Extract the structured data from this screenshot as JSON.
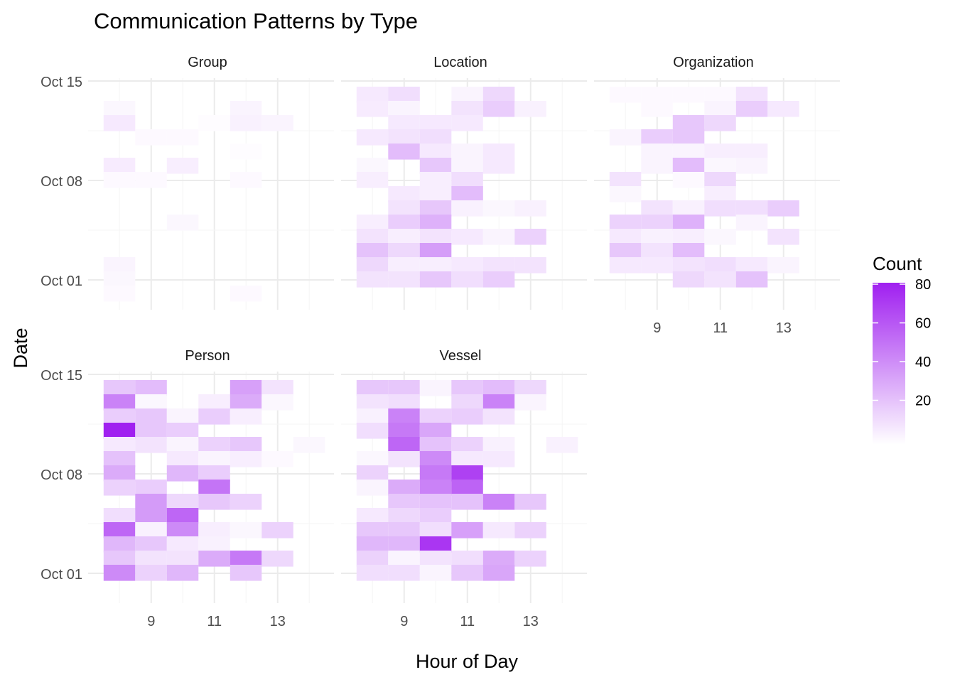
{
  "chart_data": {
    "type": "heatmap",
    "title": "Communication Patterns by Type",
    "xlabel": "Hour of Day",
    "ylabel": "Date",
    "x_range": [
      7.5,
      14.5
    ],
    "y_range": [
      "Sep 30",
      "Oct 16"
    ],
    "x_ticks": [
      9,
      11,
      13
    ],
    "y_ticks": [
      {
        "day": 1,
        "label": "Oct 01"
      },
      {
        "day": 8,
        "label": "Oct 08"
      },
      {
        "day": 15,
        "label": "Oct 15"
      }
    ],
    "legend": {
      "title": "Count",
      "min": 0,
      "max": 80,
      "ticks": [
        20,
        40,
        60,
        80
      ],
      "low_color": "#ffffff",
      "high_color": "#a020f0",
      "position": "right"
    },
    "grid": true,
    "panels": [
      {
        "name": "Group",
        "rows": [
          {
            "date": "Oct 14",
            "hour8": 3,
            "hour12": 4
          },
          {
            "date": "Oct 13",
            "hour8": 8,
            "hour11": 1,
            "hour12": 5,
            "hour13": 4
          },
          {
            "date": "Oct 12",
            "hour9": 2,
            "hour10": 2
          },
          {
            "date": "Oct 11",
            "hour12": 1
          },
          {
            "date": "Oct 10",
            "hour8": 7,
            "hour10": 6
          },
          {
            "date": "Oct 09",
            "hour8": 2,
            "hour9": 2,
            "hour12": 2
          },
          {
            "date": "Oct 06",
            "hour10": 3
          },
          {
            "date": "Oct 03",
            "hour8": 4
          },
          {
            "date": "Oct 02",
            "hour8": 3
          },
          {
            "date": "Oct 01",
            "hour8": 2,
            "hour12": 2
          }
        ]
      },
      {
        "name": "Location",
        "rows": [
          {
            "date": "Oct 15",
            "hour8": 8,
            "hour9": 12,
            "hour11": 4,
            "hour12": 14
          },
          {
            "date": "Oct 14",
            "hour8": 7,
            "hour9": 4,
            "hour11": 10,
            "hour12": 18,
            "hour13": 5
          },
          {
            "date": "Oct 13",
            "hour9": 8,
            "hour10": 8,
            "hour11": 8
          },
          {
            "date": "Oct 12",
            "hour8": 8,
            "hour9": 10,
            "hour10": 12
          },
          {
            "date": "Oct 11",
            "hour9": 24,
            "hour10": 8,
            "hour11": 4,
            "hour12": 8
          },
          {
            "date": "Oct 10",
            "hour8": 3,
            "hour10": 20,
            "hour11": 4,
            "hour12": 8
          },
          {
            "date": "Oct 09",
            "hour8": 6,
            "hour10": 6,
            "hour11": 12
          },
          {
            "date": "Oct 08",
            "hour9": 8,
            "hour10": 6,
            "hour11": 24
          },
          {
            "date": "Oct 07",
            "hour9": 10,
            "hour10": 20,
            "hour11": 5,
            "hour12": 3,
            "hour13": 5
          },
          {
            "date": "Oct 06",
            "hour8": 6,
            "hour9": 18,
            "hour10": 28
          },
          {
            "date": "Oct 05",
            "hour8": 10,
            "hour9": 6,
            "hour10": 10,
            "hour11": 8,
            "hour12": 4,
            "hour13": 16
          },
          {
            "date": "Oct 04",
            "hour8": 22,
            "hour9": 14,
            "hour10": 35
          },
          {
            "date": "Oct 03",
            "hour8": 14,
            "hour9": 6,
            "hour10": 6,
            "hour11": 8,
            "hour12": 10,
            "hour13": 10
          },
          {
            "date": "Oct 02",
            "hour8": 10,
            "hour9": 10,
            "hour10": 20,
            "hour11": 12,
            "hour12": 18
          }
        ]
      },
      {
        "name": "Organization",
        "rows": [
          {
            "date": "Oct 15",
            "hour8": 2,
            "hour9": 2,
            "hour10": 2,
            "hour11": 2,
            "hour12": 10
          },
          {
            "date": "Oct 14",
            "hour9": 2,
            "hour11": 4,
            "hour12": 18,
            "hour13": 8
          },
          {
            "date": "Oct 13",
            "hour10": 20,
            "hour11": 14
          },
          {
            "date": "Oct 12",
            "hour8": 4,
            "hour9": 18,
            "hour10": 20
          },
          {
            "date": "Oct 11",
            "hour9": 4,
            "hour10": 4,
            "hour11": 6,
            "hour12": 6
          },
          {
            "date": "Oct 10",
            "hour9": 4,
            "hour10": 24,
            "hour11": 3,
            "hour12": 4
          },
          {
            "date": "Oct 09",
            "hour8": 10,
            "hour10": 2,
            "hour11": 14
          },
          {
            "date": "Oct 08",
            "hour8": 3,
            "hour11": 6
          },
          {
            "date": "Oct 07",
            "hour9": 10,
            "hour10": 5,
            "hour11": 12,
            "hour12": 12,
            "hour13": 18
          },
          {
            "date": "Oct 06",
            "hour8": 16,
            "hour9": 16,
            "hour10": 28,
            "hour12": 4
          },
          {
            "date": "Oct 05",
            "hour8": 8,
            "hour9": 5,
            "hour10": 6,
            "hour11": 3,
            "hour13": 10
          },
          {
            "date": "Oct 04",
            "hour8": 20,
            "hour9": 10,
            "hour10": 24
          },
          {
            "date": "Oct 03",
            "hour8": 8,
            "hour9": 8,
            "hour10": 10,
            "hour11": 12,
            "hour12": 8,
            "hour13": 4
          },
          {
            "date": "Oct 02",
            "hour10": 14,
            "hour11": 10,
            "hour12": 22
          }
        ]
      },
      {
        "name": "Person",
        "rows": [
          {
            "date": "Oct 15",
            "hour8": 20,
            "hour9": 24,
            "hour12": 34,
            "hour13": 10
          },
          {
            "date": "Oct 14",
            "hour8": 45,
            "hour9": 3,
            "hour11": 6,
            "hour12": 30,
            "hour13": 3
          },
          {
            "date": "Oct 13",
            "hour8": 18,
            "hour9": 20,
            "hour10": 4,
            "hour11": 18,
            "hour12": 6
          },
          {
            "date": "Oct 12",
            "hour8": 80,
            "hour9": 20,
            "hour10": 18
          },
          {
            "date": "Oct 11",
            "hour8": 8,
            "hour9": 10,
            "hour10": 4,
            "hour11": 16,
            "hour12": 20,
            "hour14": 3
          },
          {
            "date": "Oct 10",
            "hour8": 22,
            "hour10": 8,
            "hour11": 4,
            "hour12": 6,
            "hour13": 2
          },
          {
            "date": "Oct 09",
            "hour8": 30,
            "hour10": 26,
            "hour11": 18
          },
          {
            "date": "Oct 08",
            "hour8": 16,
            "hour9": 18,
            "hour11": 50
          },
          {
            "date": "Oct 07",
            "hour9": 36,
            "hour10": 14,
            "hour11": 20,
            "hour12": 16
          },
          {
            "date": "Oct 06",
            "hour8": 12,
            "hour9": 36,
            "hour10": 55
          },
          {
            "date": "Oct 05",
            "hour8": 55,
            "hour9": 5,
            "hour10": 42,
            "hour11": 6,
            "hour12": 3,
            "hour13": 16
          },
          {
            "date": "Oct 04",
            "hour8": 26,
            "hour9": 20,
            "hour10": 8,
            "hour11": 5
          },
          {
            "date": "Oct 03",
            "hour8": 20,
            "hour9": 10,
            "hour10": 10,
            "hour11": 30,
            "hour12": 48,
            "hour13": 14
          },
          {
            "date": "Oct 02",
            "hour8": 42,
            "hour9": 16,
            "hour10": 26,
            "hour12": 20
          }
        ]
      },
      {
        "name": "Vessel",
        "rows": [
          {
            "date": "Oct 15",
            "hour8": 20,
            "hour9": 20,
            "hour10": 4,
            "hour11": 20,
            "hour12": 24,
            "hour13": 14
          },
          {
            "date": "Oct 14",
            "hour8": 10,
            "hour9": 12,
            "hour11": 14,
            "hour12": 45,
            "hour13": 4
          },
          {
            "date": "Oct 13",
            "hour8": 5,
            "hour9": 45,
            "hour10": 16,
            "hour11": 18,
            "hour12": 10
          },
          {
            "date": "Oct 12",
            "hour8": 12,
            "hour9": 48,
            "hour10": 32
          },
          {
            "date": "Oct 11",
            "hour9": 55,
            "hour10": 22,
            "hour11": 16,
            "hour12": 5,
            "hour14": 5
          },
          {
            "date": "Oct 10",
            "hour8": 3,
            "hour9": 10,
            "hour10": 42,
            "hour11": 8,
            "hour12": 8
          },
          {
            "date": "Oct 09",
            "hour8": 16,
            "hour10": 48,
            "hour11": 68
          },
          {
            "date": "Oct 08",
            "hour8": 4,
            "hour9": 30,
            "hour10": 45,
            "hour11": 56
          },
          {
            "date": "Oct 07",
            "hour9": 20,
            "hour10": 22,
            "hour11": 22,
            "hour12": 45,
            "hour13": 20
          },
          {
            "date": "Oct 06",
            "hour8": 8,
            "hour9": 14,
            "hour10": 18
          },
          {
            "date": "Oct 05",
            "hour8": 20,
            "hour9": 20,
            "hour10": 12,
            "hour11": 34,
            "hour12": 8,
            "hour13": 16
          },
          {
            "date": "Oct 04",
            "hour8": 26,
            "hour9": 26,
            "hour10": 72
          },
          {
            "date": "Oct 03",
            "hour8": 16,
            "hour9": 4,
            "hour10": 10,
            "hour11": 12,
            "hour12": 30,
            "hour13": 16
          },
          {
            "date": "Oct 02",
            "hour8": 12,
            "hour9": 12,
            "hour10": 4,
            "hour11": 20,
            "hour12": 32
          }
        ]
      }
    ]
  }
}
